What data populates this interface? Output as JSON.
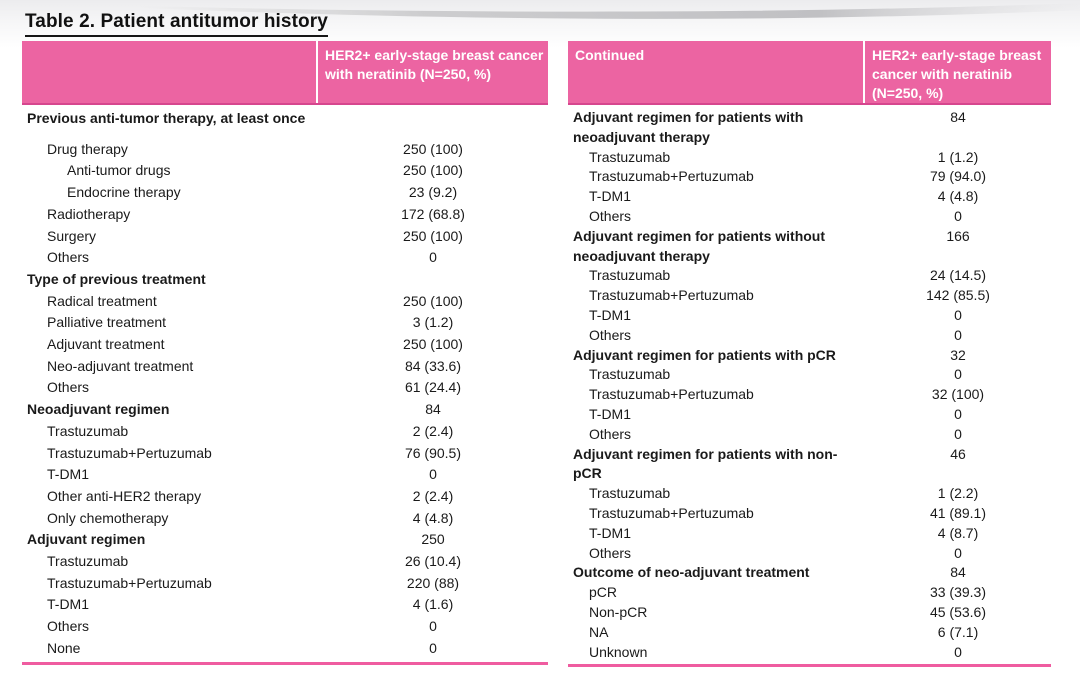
{
  "title": "Table 2. Patient antitumor history",
  "colors": {
    "header_pink": "#ec64a2",
    "header_border_pink": "#d6468e",
    "bottom_rule_pink": "#ef5ca0",
    "title_text": "#111111",
    "body_text": "#1a1a1a",
    "header_text": "#ffffff"
  },
  "tables": [
    {
      "id": "left",
      "header": {
        "label": "",
        "value": "HER2+ early-stage breast cancer with neratinib (N=250, %)"
      },
      "rows": [
        {
          "label": "Previous anti-tumor therapy, at least once",
          "value": "",
          "indent": 0,
          "bold": true,
          "gap_after": true
        },
        {
          "label": "Drug therapy",
          "value": "250 (100)",
          "indent": 1,
          "bold": false
        },
        {
          "label": "Anti-tumor drugs",
          "value": "250 (100)",
          "indent": 2,
          "bold": false
        },
        {
          "label": "Endocrine therapy",
          "value": "23 (9.2)",
          "indent": 2,
          "bold": false
        },
        {
          "label": "Radiotherapy",
          "value": "172 (68.8)",
          "indent": 1,
          "bold": false
        },
        {
          "label": "Surgery",
          "value": "250 (100)",
          "indent": 1,
          "bold": false
        },
        {
          "label": "Others",
          "value": "0",
          "indent": 1,
          "bold": false
        },
        {
          "label": "Type of previous treatment",
          "value": "",
          "indent": 0,
          "bold": true
        },
        {
          "label": "Radical treatment",
          "value": "250 (100)",
          "indent": 1,
          "bold": false
        },
        {
          "label": "Palliative treatment",
          "value": "3 (1.2)",
          "indent": 1,
          "bold": false
        },
        {
          "label": "Adjuvant treatment",
          "value": "250 (100)",
          "indent": 1,
          "bold": false
        },
        {
          "label": "Neo-adjuvant treatment",
          "value": "84 (33.6)",
          "indent": 1,
          "bold": false
        },
        {
          "label": "Others",
          "value": "61 (24.4)",
          "indent": 1,
          "bold": false
        },
        {
          "label": "Neoadjuvant regimen",
          "value": "84",
          "indent": 0,
          "bold": true
        },
        {
          "label": "Trastuzumab",
          "value": "2 (2.4)",
          "indent": 1,
          "bold": false
        },
        {
          "label": "Trastuzumab+Pertuzumab",
          "value": "76 (90.5)",
          "indent": 1,
          "bold": false
        },
        {
          "label": "T-DM1",
          "value": "0",
          "indent": 1,
          "bold": false
        },
        {
          "label": "Other anti-HER2 therapy",
          "value": "2 (2.4)",
          "indent": 1,
          "bold": false
        },
        {
          "label": "Only chemotherapy",
          "value": "4 (4.8)",
          "indent": 1,
          "bold": false
        },
        {
          "label": "Adjuvant regimen",
          "value": "250",
          "indent": 0,
          "bold": true
        },
        {
          "label": "Trastuzumab",
          "value": "26 (10.4)",
          "indent": 1,
          "bold": false
        },
        {
          "label": "Trastuzumab+Pertuzumab",
          "value": "220 (88)",
          "indent": 1,
          "bold": false
        },
        {
          "label": "T-DM1",
          "value": "4 (1.6)",
          "indent": 1,
          "bold": false
        },
        {
          "label": "Others",
          "value": "0",
          "indent": 1,
          "bold": false
        },
        {
          "label": "None",
          "value": "0",
          "indent": 1,
          "bold": false
        }
      ]
    },
    {
      "id": "right",
      "header": {
        "label": "Continued",
        "value": "HER2+ early-stage breast cancer with neratinib (N=250, %)"
      },
      "rows": [
        {
          "label": "Adjuvant regimen for patients with neoadjuvant therapy",
          "value": "84",
          "indent": 0,
          "bold": true
        },
        {
          "label": "Trastuzumab",
          "value": "1 (1.2)",
          "indent": 1,
          "bold": false
        },
        {
          "label": "Trastuzumab+Pertuzumab",
          "value": "79 (94.0)",
          "indent": 1,
          "bold": false
        },
        {
          "label": "T-DM1",
          "value": "4 (4.8)",
          "indent": 1,
          "bold": false
        },
        {
          "label": "Others",
          "value": "0",
          "indent": 1,
          "bold": false
        },
        {
          "label": "Adjuvant regimen for patients without neoadjuvant therapy",
          "value": "166",
          "indent": 0,
          "bold": true
        },
        {
          "label": "Trastuzumab",
          "value": "24 (14.5)",
          "indent": 1,
          "bold": false
        },
        {
          "label": "Trastuzumab+Pertuzumab",
          "value": "142 (85.5)",
          "indent": 1,
          "bold": false
        },
        {
          "label": "T-DM1",
          "value": "0",
          "indent": 1,
          "bold": false
        },
        {
          "label": "Others",
          "value": "0",
          "indent": 1,
          "bold": false
        },
        {
          "label": "Adjuvant regimen for patients with pCR",
          "value": "32",
          "indent": 0,
          "bold": true
        },
        {
          "label": "Trastuzumab",
          "value": "0",
          "indent": 1,
          "bold": false
        },
        {
          "label": "Trastuzumab+Pertuzumab",
          "value": "32 (100)",
          "indent": 1,
          "bold": false
        },
        {
          "label": "T-DM1",
          "value": "0",
          "indent": 1,
          "bold": false
        },
        {
          "label": "Others",
          "value": "0",
          "indent": 1,
          "bold": false
        },
        {
          "label": "Adjuvant regimen for patients with non-pCR",
          "value": "46",
          "indent": 0,
          "bold": true
        },
        {
          "label": "Trastuzumab",
          "value": "1 (2.2)",
          "indent": 1,
          "bold": false
        },
        {
          "label": "Trastuzumab+Pertuzumab",
          "value": "41 (89.1)",
          "indent": 1,
          "bold": false
        },
        {
          "label": "T-DM1",
          "value": "4 (8.7)",
          "indent": 1,
          "bold": false
        },
        {
          "label": "Others",
          "value": "0",
          "indent": 1,
          "bold": false
        },
        {
          "label": "Outcome of neo-adjuvant treatment",
          "value": "84",
          "indent": 0,
          "bold": true
        },
        {
          "label": "pCR",
          "value": "33 (39.3)",
          "indent": 1,
          "bold": false
        },
        {
          "label": "Non-pCR",
          "value": "45 (53.6)",
          "indent": 1,
          "bold": false
        },
        {
          "label": "NA",
          "value": "6 (7.1)",
          "indent": 1,
          "bold": false
        },
        {
          "label": "Unknown",
          "value": "0",
          "indent": 1,
          "bold": false
        }
      ]
    }
  ]
}
